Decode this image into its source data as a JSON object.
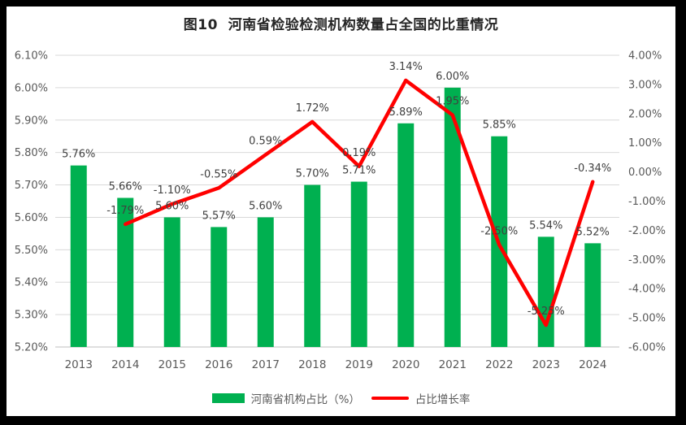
{
  "title": "图10  河南省检验检测机构数量占全国的比重情况",
  "chart_data": {
    "type": "bar",
    "subtype": "combo-bar-line",
    "title": "图10  河南省检验检测机构数量占全国的比重情况",
    "categories": [
      "2013",
      "2014",
      "2015",
      "2016",
      "2017",
      "2018",
      "2019",
      "2020",
      "2021",
      "2022",
      "2023",
      "2024"
    ],
    "series": [
      {
        "name": "河南省机构占比（%）",
        "type": "bar",
        "axis": "left",
        "color": "#00B050",
        "values": [
          5.76,
          5.66,
          5.6,
          5.57,
          5.6,
          5.7,
          5.71,
          5.89,
          6.0,
          5.85,
          5.54,
          5.52
        ],
        "labels": [
          "5.76%",
          "5.66%",
          "5.60%",
          "5.57%",
          "5.60%",
          "5.70%",
          "5.71%",
          "5.89%",
          "6.00%",
          "5.85%",
          "5.54%",
          "5.52%"
        ]
      },
      {
        "name": "占比增长率",
        "type": "line",
        "axis": "right",
        "color": "#FF0000",
        "values": [
          null,
          -1.79,
          -1.1,
          -0.55,
          0.59,
          1.72,
          0.19,
          3.14,
          1.95,
          -2.5,
          -5.25,
          -0.34
        ],
        "labels": [
          null,
          "-1.79%",
          "-1.10%",
          "-0.55%",
          "0.59%",
          "1.72%",
          "0.19%",
          "3.14%",
          "1.95%",
          "-2.50%",
          "-5.25%",
          "-0.34%"
        ]
      }
    ],
    "left_axis": {
      "min": 5.2,
      "max": 6.1,
      "step": 0.1,
      "tick_labels": [
        "6.10%",
        "6.00%",
        "5.90%",
        "5.80%",
        "5.70%",
        "5.60%",
        "5.50%",
        "5.40%",
        "5.30%",
        "5.20%"
      ]
    },
    "right_axis": {
      "min": -6.0,
      "max": 4.0,
      "step": 1.0,
      "tick_labels": [
        "4.00%",
        "3.00%",
        "2.00%",
        "1.00%",
        "0.00%",
        "-1.00%",
        "-2.00%",
        "-3.00%",
        "-4.00%",
        "-5.00%",
        "-6.00%"
      ]
    },
    "grid": true,
    "legend_position": "bottom",
    "colors": {
      "bar": "#00B050",
      "line": "#FF0000",
      "gridline": "#D9D9D9",
      "axis_line": "#BFBFBF",
      "tick_label": "#595959",
      "data_label": "#404040"
    }
  }
}
